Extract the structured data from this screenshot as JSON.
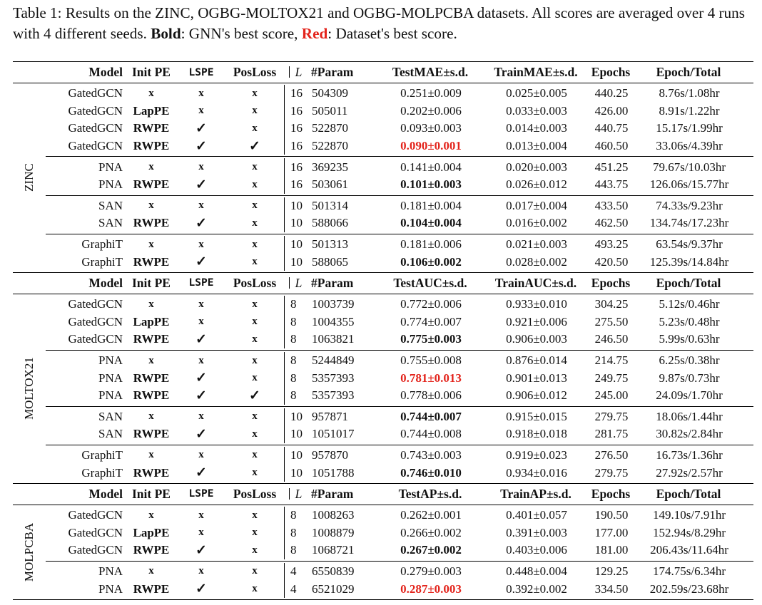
{
  "caption": {
    "prefix": "Table 1: Results on the ZINC, OGBG-MOLTOX21 and OGBG-MOLPCBA datasets. All scores are averaged over 4 runs with 4 different seeds. ",
    "bold_word": "Bold",
    "bold_desc": ": GNN's best score, ",
    "red_word": "Red",
    "red_desc": ": Dataset's best score."
  },
  "sections": [
    {
      "dataset": "ZINC",
      "header": {
        "model": "Model",
        "init_pe": "Init PE",
        "lspe": "LSPE",
        "posloss": "PosLoss",
        "L": "L",
        "param": "#Param",
        "test": "TestMAE±s.d.",
        "train": "TrainMAE±s.d.",
        "epochs": "Epochs",
        "total": "Epoch/Total"
      },
      "groups": [
        [
          {
            "model": "GatedGCN",
            "init": "x",
            "lspe": "x",
            "pos": "x",
            "L": "16",
            "param": "504309",
            "test": "0.251±0.009",
            "test_style": "",
            "train": "0.025±0.005",
            "epochs": "440.25",
            "total": "8.76s/1.08hr"
          },
          {
            "model": "GatedGCN",
            "init": "LapPE",
            "lspe": "x",
            "pos": "x",
            "L": "16",
            "param": "505011",
            "test": "0.202±0.006",
            "test_style": "",
            "train": "0.033±0.003",
            "epochs": "426.00",
            "total": "8.91s/1.22hr"
          },
          {
            "model": "GatedGCN",
            "init": "RWPE",
            "lspe": "✓",
            "pos": "x",
            "L": "16",
            "param": "522870",
            "test": "0.093±0.003",
            "test_style": "",
            "train": "0.014±0.003",
            "epochs": "440.75",
            "total": "15.17s/1.99hr"
          },
          {
            "model": "GatedGCN",
            "init": "RWPE",
            "lspe": "✓",
            "pos": "✓",
            "L": "16",
            "param": "522870",
            "test": "0.090±0.001",
            "test_style": "red",
            "train": "0.013±0.004",
            "epochs": "460.50",
            "total": "33.06s/4.39hr"
          }
        ],
        [
          {
            "model": "PNA",
            "init": "x",
            "lspe": "x",
            "pos": "x",
            "L": "16",
            "param": "369235",
            "test": "0.141±0.004",
            "test_style": "",
            "train": "0.020±0.003",
            "epochs": "451.25",
            "total": "79.67s/10.03hr"
          },
          {
            "model": "PNA",
            "init": "RWPE",
            "lspe": "✓",
            "pos": "x",
            "L": "16",
            "param": "503061",
            "test": "0.101±0.003",
            "test_style": "bold",
            "train": "0.026±0.012",
            "epochs": "443.75",
            "total": "126.06s/15.77hr"
          }
        ],
        [
          {
            "model": "SAN",
            "init": "x",
            "lspe": "x",
            "pos": "x",
            "L": "10",
            "param": "501314",
            "test": "0.181±0.004",
            "test_style": "",
            "train": "0.017±0.004",
            "epochs": "433.50",
            "total": "74.33s/9.23hr"
          },
          {
            "model": "SAN",
            "init": "RWPE",
            "lspe": "✓",
            "pos": "x",
            "L": "10",
            "param": "588066",
            "test": "0.104±0.004",
            "test_style": "bold",
            "train": "0.016±0.002",
            "epochs": "462.50",
            "total": "134.74s/17.23hr"
          }
        ],
        [
          {
            "model": "GraphiT",
            "init": "x",
            "lspe": "x",
            "pos": "x",
            "L": "10",
            "param": "501313",
            "test": "0.181±0.006",
            "test_style": "",
            "train": "0.021±0.003",
            "epochs": "493.25",
            "total": "63.54s/9.37hr"
          },
          {
            "model": "GraphiT",
            "init": "RWPE",
            "lspe": "✓",
            "pos": "x",
            "L": "10",
            "param": "588065",
            "test": "0.106±0.002",
            "test_style": "bold",
            "train": "0.028±0.002",
            "epochs": "420.50",
            "total": "125.39s/14.84hr"
          }
        ]
      ]
    },
    {
      "dataset": "MOLTOX21",
      "header": {
        "model": "Model",
        "init_pe": "Init PE",
        "lspe": "LSPE",
        "posloss": "PosLoss",
        "L": "L",
        "param": "#Param",
        "test": "TestAUC±s.d.",
        "train": "TrainAUC±s.d.",
        "epochs": "Epochs",
        "total": "Epoch/Total"
      },
      "groups": [
        [
          {
            "model": "GatedGCN",
            "init": "x",
            "lspe": "x",
            "pos": "x",
            "L": "8",
            "param": "1003739",
            "test": "0.772±0.006",
            "test_style": "",
            "train": "0.933±0.010",
            "epochs": "304.25",
            "total": "5.12s/0.46hr"
          },
          {
            "model": "GatedGCN",
            "init": "LapPE",
            "lspe": "x",
            "pos": "x",
            "L": "8",
            "param": "1004355",
            "test": "0.774±0.007",
            "test_style": "",
            "train": "0.921±0.006",
            "epochs": "275.50",
            "total": "5.23s/0.48hr"
          },
          {
            "model": "GatedGCN",
            "init": "RWPE",
            "lspe": "✓",
            "pos": "x",
            "L": "8",
            "param": "1063821",
            "test": "0.775±0.003",
            "test_style": "bold",
            "train": "0.906±0.003",
            "epochs": "246.50",
            "total": "5.99s/0.63hr"
          }
        ],
        [
          {
            "model": "PNA",
            "init": "x",
            "lspe": "x",
            "pos": "x",
            "L": "8",
            "param": "5244849",
            "test": "0.755±0.008",
            "test_style": "",
            "train": "0.876±0.014",
            "epochs": "214.75",
            "total": "6.25s/0.38hr"
          },
          {
            "model": "PNA",
            "init": "RWPE",
            "lspe": "✓",
            "pos": "x",
            "L": "8",
            "param": "5357393",
            "test": "0.781±0.013",
            "test_style": "red",
            "train": "0.901±0.013",
            "epochs": "249.75",
            "total": "9.87s/0.73hr"
          },
          {
            "model": "PNA",
            "init": "RWPE",
            "lspe": "✓",
            "pos": "✓",
            "L": "8",
            "param": "5357393",
            "test": "0.778±0.006",
            "test_style": "",
            "train": "0.906±0.012",
            "epochs": "245.00",
            "total": "24.09s/1.70hr"
          }
        ],
        [
          {
            "model": "SAN",
            "init": "x",
            "lspe": "x",
            "pos": "x",
            "L": "10",
            "param": "957871",
            "test": "0.744±0.007",
            "test_style": "bold",
            "train": "0.915±0.015",
            "epochs": "279.75",
            "total": "18.06s/1.44hr"
          },
          {
            "model": "SAN",
            "init": "RWPE",
            "lspe": "✓",
            "pos": "x",
            "L": "10",
            "param": "1051017",
            "test": "0.744±0.008",
            "test_style": "",
            "train": "0.918±0.018",
            "epochs": "281.75",
            "total": "30.82s/2.84hr"
          }
        ],
        [
          {
            "model": "GraphiT",
            "init": "x",
            "lspe": "x",
            "pos": "x",
            "L": "10",
            "param": "957870",
            "test": "0.743±0.003",
            "test_style": "",
            "train": "0.919±0.023",
            "epochs": "276.50",
            "total": "16.73s/1.36hr"
          },
          {
            "model": "GraphiT",
            "init": "RWPE",
            "lspe": "✓",
            "pos": "x",
            "L": "10",
            "param": "1051788",
            "test": "0.746±0.010",
            "test_style": "bold",
            "train": "0.934±0.016",
            "epochs": "279.75",
            "total": "27.92s/2.57hr"
          }
        ]
      ]
    },
    {
      "dataset": "MOLPCBA",
      "header": {
        "model": "Model",
        "init_pe": "Init PE",
        "lspe": "LSPE",
        "posloss": "PosLoss",
        "L": "L",
        "param": "#Param",
        "test": "TestAP±s.d.",
        "train": "TrainAP±s.d.",
        "epochs": "Epochs",
        "total": "Epoch/Total"
      },
      "groups": [
        [
          {
            "model": "GatedGCN",
            "init": "x",
            "lspe": "x",
            "pos": "x",
            "L": "8",
            "param": "1008263",
            "test": "0.262±0.001",
            "test_style": "",
            "train": "0.401±0.057",
            "epochs": "190.50",
            "total": "149.10s/7.91hr"
          },
          {
            "model": "GatedGCN",
            "init": "LapPE",
            "lspe": "x",
            "pos": "x",
            "L": "8",
            "param": "1008879",
            "test": "0.266±0.002",
            "test_style": "",
            "train": "0.391±0.003",
            "epochs": "177.00",
            "total": "152.94s/8.29hr"
          },
          {
            "model": "GatedGCN",
            "init": "RWPE",
            "lspe": "✓",
            "pos": "x",
            "L": "8",
            "param": "1068721",
            "test": "0.267±0.002",
            "test_style": "bold",
            "train": "0.403±0.006",
            "epochs": "181.00",
            "total": "206.43s/11.64hr"
          }
        ],
        [
          {
            "model": "PNA",
            "init": "x",
            "lspe": "x",
            "pos": "x",
            "L": "4",
            "param": "6550839",
            "test": "0.279±0.003",
            "test_style": "",
            "train": "0.448±0.004",
            "epochs": "129.25",
            "total": "174.75s/6.34hr"
          },
          {
            "model": "PNA",
            "init": "RWPE",
            "lspe": "✓",
            "pos": "x",
            "L": "4",
            "param": "6521029",
            "test": "0.287±0.003",
            "test_style": "red",
            "train": "0.392±0.002",
            "epochs": "334.50",
            "total": "202.59s/23.68hr"
          }
        ]
      ]
    }
  ]
}
